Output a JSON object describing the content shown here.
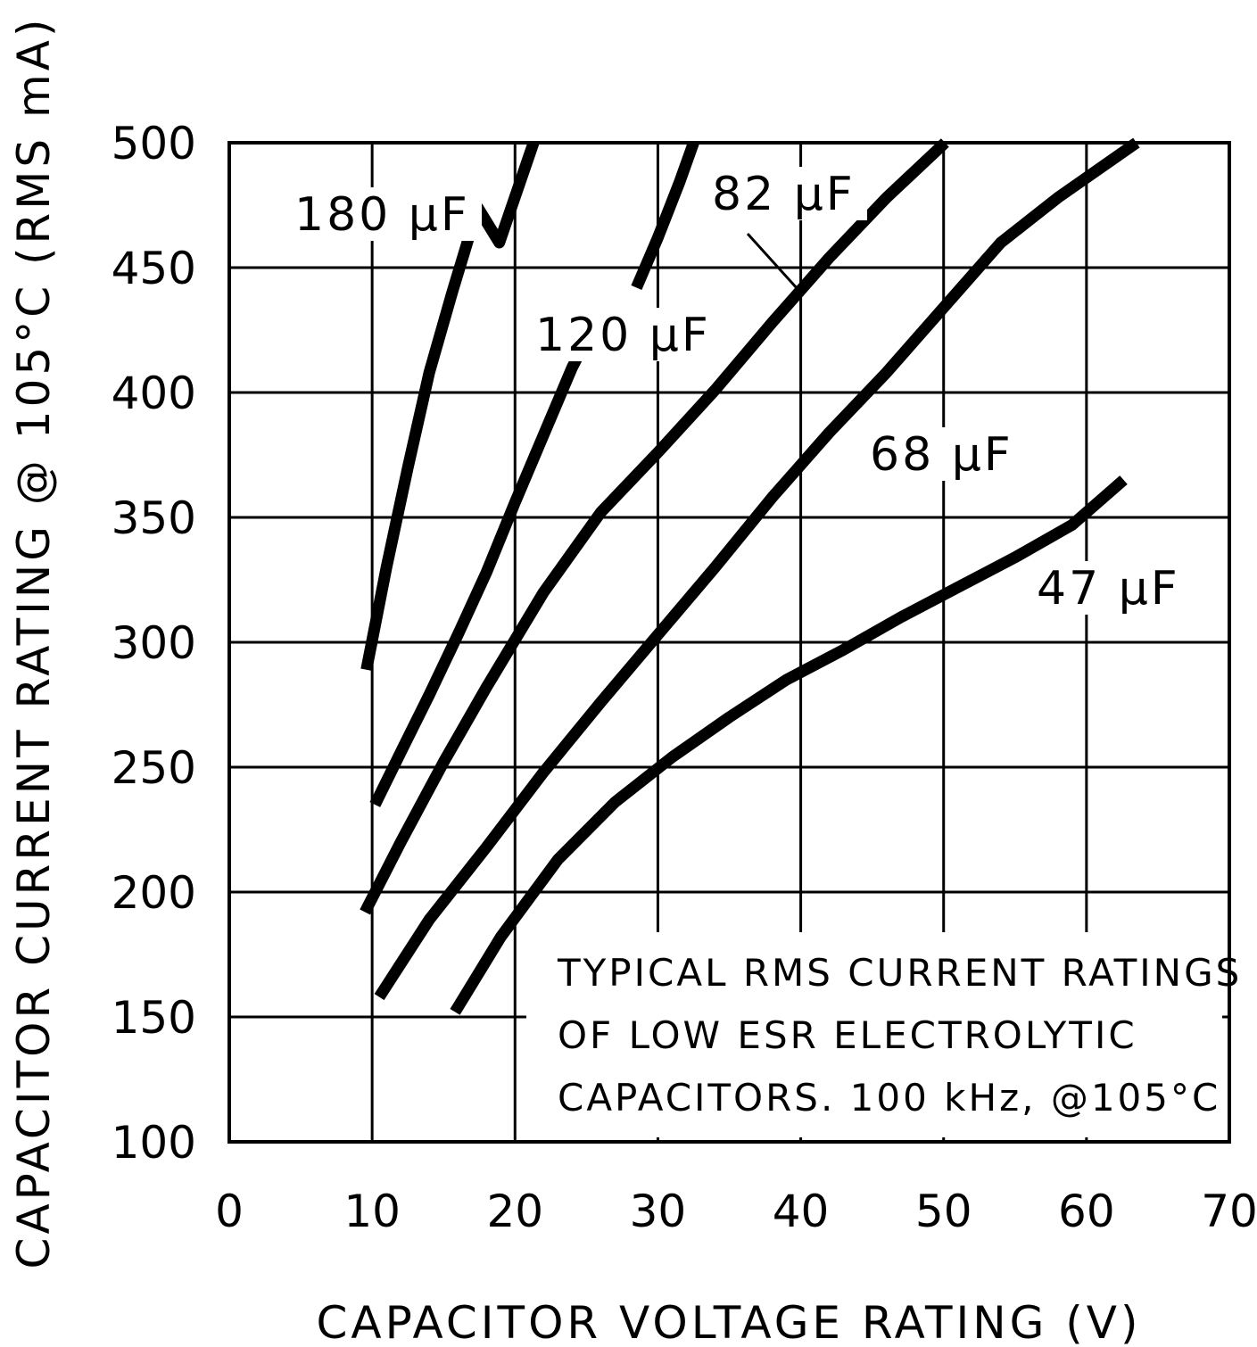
{
  "chart_data": {
    "type": "line",
    "xlabel": "CAPACITOR VOLTAGE RATING (V)",
    "ylabel": "CAPACITOR CURRENT RATING @ 105°C (RMS mA)",
    "xlim": [
      0,
      70
    ],
    "ylim": [
      100,
      500
    ],
    "x_ticks": [
      "0",
      "10",
      "20",
      "30",
      "40",
      "50",
      "60",
      "70"
    ],
    "y_ticks": [
      "100",
      "150",
      "200",
      "250",
      "300",
      "350",
      "400",
      "450",
      "500"
    ],
    "grid": true,
    "annotation": [
      "TYPICAL RMS CURRENT RATINGS",
      "OF LOW ESR ELECTROLYTIC",
      "CAPACITORS. 100 kHz, @105°C"
    ],
    "series": [
      {
        "name": "180 µF",
        "x": [
          9.6,
          11,
          12.5,
          14,
          15.6,
          17.4,
          18.9,
          20.1,
          21.3
        ],
        "y": [
          289,
          330,
          370,
          408,
          440,
          474,
          460,
          480,
          500
        ]
      },
      {
        "name": "120 µF",
        "x": [
          10.2,
          12,
          14,
          16,
          18,
          20,
          22,
          24,
          25.8
        ],
        "y": [
          235,
          256,
          279,
          303,
          328,
          356,
          383,
          410,
          430
        ]
      },
      {
        "name": "120 µF (upper)",
        "x": [
          28.5,
          30,
          31.5,
          32.5
        ],
        "y": [
          442,
          462,
          484,
          500
        ]
      },
      {
        "name": "82 µF",
        "x": [
          9.5,
          12,
          15,
          18,
          22,
          26,
          30,
          34,
          38,
          42,
          46,
          50.1
        ],
        "y": [
          192,
          220,
          252,
          282,
          320,
          352,
          376,
          401,
          428,
          454,
          478,
          500
        ]
      },
      {
        "name": "68 µF",
        "x": [
          10.5,
          14,
          18,
          22,
          26,
          30,
          34,
          38,
          42,
          46,
          50,
          54,
          58,
          63.5
        ],
        "y": [
          158,
          189,
          218,
          248,
          276,
          303,
          330,
          358,
          384,
          408,
          434,
          460,
          478,
          500
        ]
      },
      {
        "name": "47 µF",
        "x": [
          15.8,
          19,
          23,
          27,
          31,
          35,
          39,
          43,
          47,
          51,
          55,
          59,
          62.6
        ],
        "y": [
          152,
          182,
          213,
          236,
          254,
          270,
          285,
          297,
          310,
          322,
          334,
          347,
          365
        ]
      }
    ],
    "labels": [
      {
        "series": "180 µF",
        "text": "180 µF"
      },
      {
        "series": "120 µF",
        "text": "120 µF"
      },
      {
        "series": "82 µF",
        "text": "82 µF"
      },
      {
        "series": "68 µF",
        "text": "68 µF"
      },
      {
        "series": "47 µF",
        "text": "47 µF"
      }
    ],
    "colors": {
      "line": "#000000",
      "background": "#ffffff"
    }
  }
}
